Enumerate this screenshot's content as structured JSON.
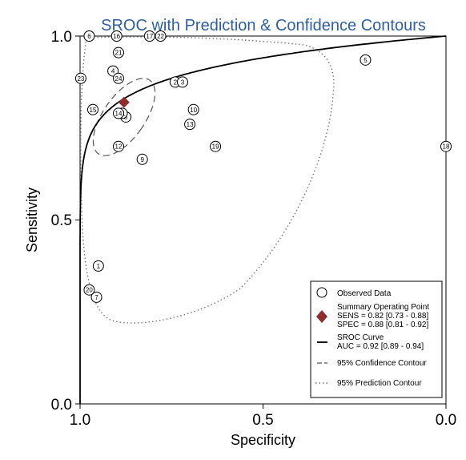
{
  "chart_data": {
    "type": "scatter",
    "title": "SROC with Prediction & Confidence Contours",
    "xlabel": "Specificity",
    "ylabel": "Sensitivity",
    "xlim": [
      1.0,
      0.0
    ],
    "ylim": [
      0.0,
      1.0
    ],
    "x_ticks": [
      "1.0",
      "0.5",
      "0.0"
    ],
    "y_ticks": [
      "0.0",
      "0.5",
      "1.0"
    ],
    "grid": false,
    "legend_position": "bottom-right",
    "observed": [
      {
        "id": "1",
        "spec": 0.95,
        "sens": 0.375
      },
      {
        "id": "2",
        "spec": 0.74,
        "sens": 0.875
      },
      {
        "id": "3",
        "spec": 0.72,
        "sens": 0.875
      },
      {
        "id": "4",
        "spec": 0.91,
        "sens": 0.905
      },
      {
        "id": "5",
        "spec": 0.22,
        "sens": 0.935
      },
      {
        "id": "6",
        "spec": 0.975,
        "sens": 1.0
      },
      {
        "id": "7",
        "spec": 0.955,
        "sens": 0.29
      },
      {
        "id": "8",
        "spec": 0.875,
        "sens": 0.78
      },
      {
        "id": "9",
        "spec": 0.83,
        "sens": 0.665
      },
      {
        "id": "10",
        "spec": 0.69,
        "sens": 0.8
      },
      {
        "id": "11",
        "spec": 0.885,
        "sens": 0.79
      },
      {
        "id": "12",
        "spec": 0.895,
        "sens": 0.7
      },
      {
        "id": "13",
        "spec": 0.7,
        "sens": 0.76
      },
      {
        "id": "14",
        "spec": 0.895,
        "sens": 0.79
      },
      {
        "id": "15",
        "spec": 0.965,
        "sens": 0.8
      },
      {
        "id": "16",
        "spec": 0.9,
        "sens": 1.0
      },
      {
        "id": "17",
        "spec": 0.81,
        "sens": 1.0
      },
      {
        "id": "19",
        "spec": 0.63,
        "sens": 0.7
      },
      {
        "id": "20",
        "spec": 0.975,
        "sens": 0.31
      },
      {
        "id": "21",
        "spec": 0.895,
        "sens": 0.955
      },
      {
        "id": "22",
        "spec": 0.78,
        "sens": 1.0
      },
      {
        "id": "23",
        "spec": 0.998,
        "sens": 0.885
      },
      {
        "id": "24",
        "spec": 0.895,
        "sens": 0.885
      },
      {
        "id": "18",
        "spec": 0.0,
        "sens": 0.7
      }
    ],
    "summary_point": {
      "spec": 0.88,
      "sens": 0.82,
      "color": "#8b2d2d"
    },
    "legend": {
      "observed": "Observed Data",
      "summary_line1": "Summary Operating Point",
      "summary_line2": "SENS = 0.82 [0.73 - 0.88]",
      "summary_line3": "SPEC = 0.88 [0.81 - 0.92]",
      "sroc_line1": "SROC Curve",
      "sroc_line2": "AUC = 0.92 [0.89 - 0.94]",
      "confidence": "95% Confidence Contour",
      "prediction": "95% Prediction Contour"
    }
  }
}
